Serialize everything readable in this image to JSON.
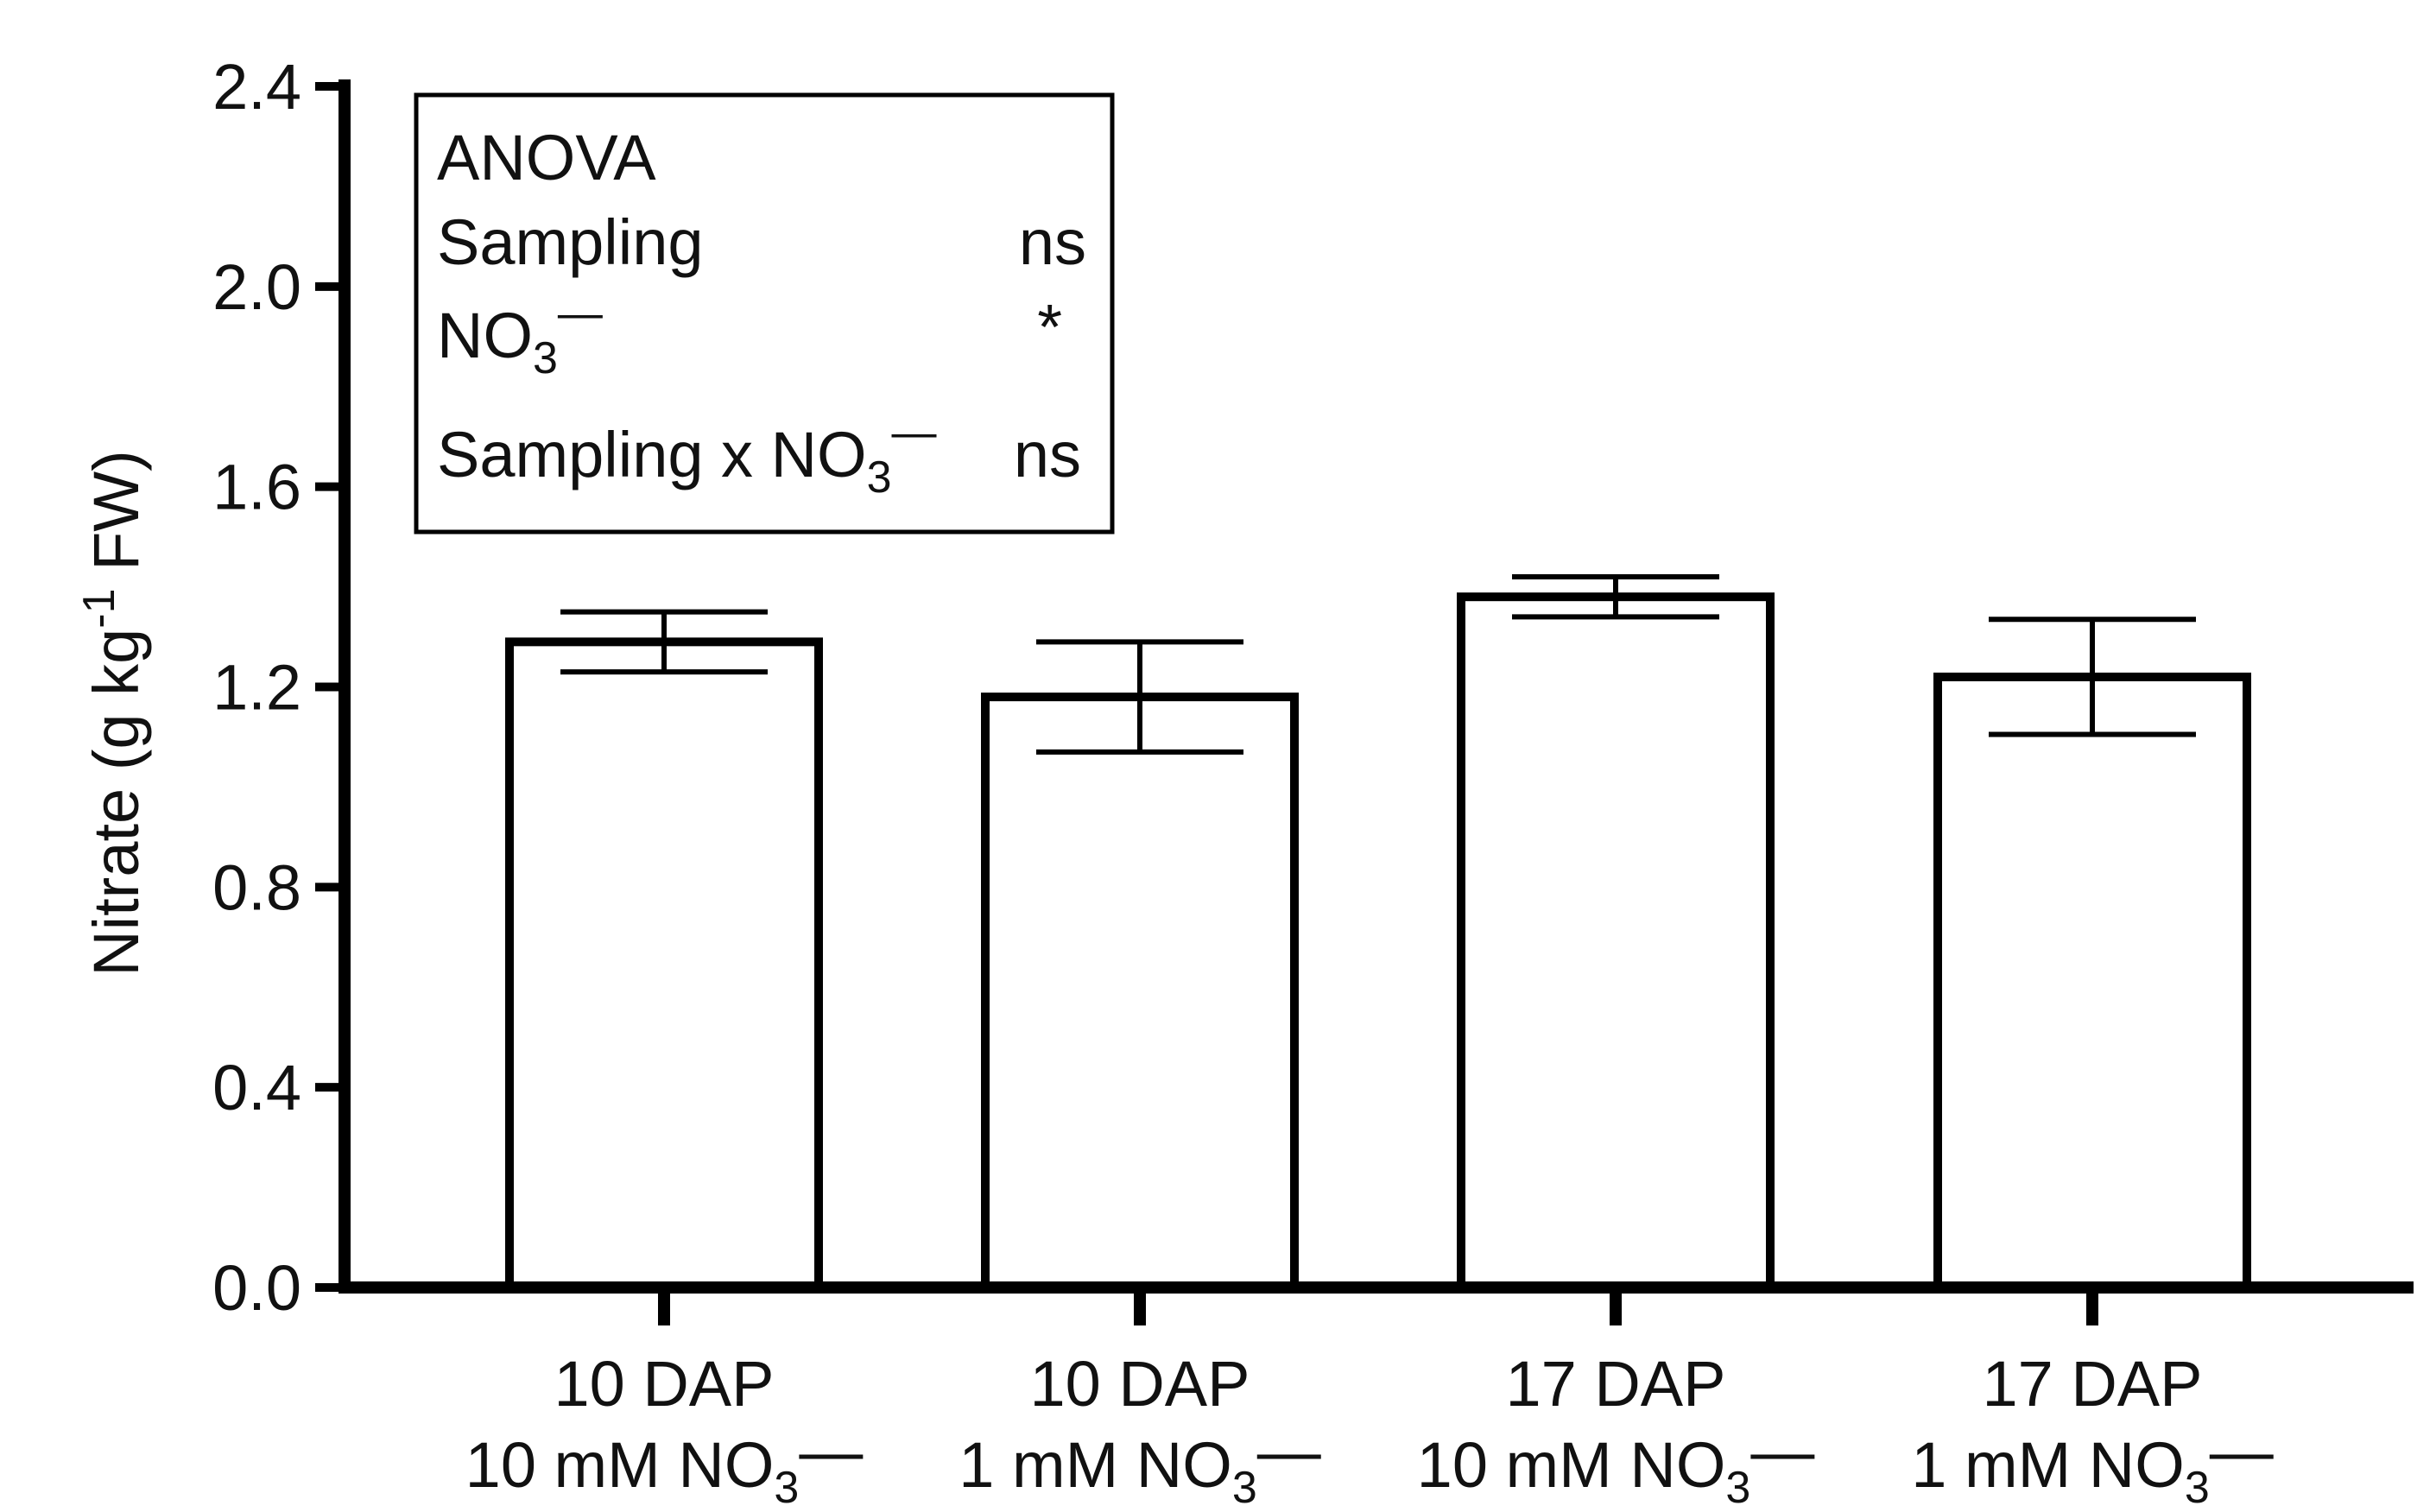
{
  "chart_data": {
    "type": "bar",
    "title": "",
    "xlabel": "",
    "ylabel": "Nitrate (g kg-1 FW)",
    "ylabel_parts": {
      "main": "Nitrate (g kg",
      "sup": "-1",
      "tail": " FW)"
    },
    "ylim": [
      0,
      2.4
    ],
    "yticks": [
      0.0,
      0.4,
      0.8,
      1.2,
      1.6,
      2.0,
      2.4
    ],
    "ytick_labels": [
      "0.0",
      "0.4",
      "0.8",
      "1.2",
      "1.6",
      "2.0",
      "2.4"
    ],
    "categories": [
      {
        "line1": "10 DAP",
        "line2": "10 mM NO",
        "sub": "3",
        "sup": "—"
      },
      {
        "line1": "10 DAP",
        "line2": "1 mM NO",
        "sub": "3",
        "sup": "—"
      },
      {
        "line1": "17 DAP",
        "line2": "10 mM NO",
        "sub": "3",
        "sup": "—"
      },
      {
        "line1": "17 DAP",
        "line2": "1 mM NO",
        "sub": "3",
        "sup": "—"
      }
    ],
    "values": [
      1.29,
      1.18,
      1.38,
      1.22
    ],
    "errors": [
      0.06,
      0.11,
      0.04,
      0.115
    ],
    "bar_fill": "#ffffff",
    "bar_stroke": "#000000",
    "grid": false,
    "legend": "none"
  },
  "anova": {
    "title": "ANOVA",
    "rows": [
      {
        "label": "Sampling",
        "label_no3": false,
        "value": "ns"
      },
      {
        "label": "NO",
        "sub": "3",
        "sup": "—",
        "label_no3": true,
        "value": "*"
      },
      {
        "label": "Sampling x NO",
        "sub": "3",
        "sup": "—",
        "label_no3": true,
        "value": "ns"
      }
    ]
  }
}
